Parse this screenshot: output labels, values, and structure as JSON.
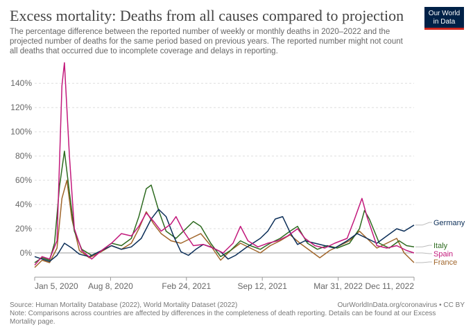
{
  "header": {
    "title": "Excess mortality: Deaths from all causes compared to projection",
    "subtitle": "The percentage difference between the reported number of weekly or monthly deaths in 2020–2022 and the projected number of deaths for the same period based on previous years. The reported number might not count all deaths that occurred due to incomplete coverage and delays in reporting.",
    "logo_line1": "Our World",
    "logo_line2": "in Data"
  },
  "footer": {
    "source": "Source: Human Mortality Database (2022), World Mortality Dataset (2022)",
    "license": "OurWorldInData.org/coronavirus • CC BY",
    "note": "Note: Comparisons across countries are affected by differences in the completeness of death reporting. Details can be found at our Excess Mortality page."
  },
  "colors": {
    "Germany": "#0b2e58",
    "Italy": "#2d6a1f",
    "Spain": "#c2187b",
    "France": "#a0652a",
    "grid": "#dddddd",
    "zero": "#999999"
  },
  "chart_data": {
    "type": "line",
    "title": "Excess mortality: Deaths from all causes compared to projection",
    "xlabel": "",
    "ylabel": "",
    "x_tick_labels": [
      "Jan 5, 2020",
      "Aug 8, 2020",
      "Feb 24, 2021",
      "Sep 12, 2021",
      "Mar 31, 2022",
      "Dec 11, 2022"
    ],
    "y_ticks": [
      0,
      20,
      40,
      60,
      80,
      100,
      120,
      140
    ],
    "y_tick_labels": [
      "0%",
      "20%",
      "40%",
      "60%",
      "80%",
      "100%",
      "120%",
      "140%"
    ],
    "ylim": [
      -20,
      155
    ],
    "xlim": [
      "2020-01-05",
      "2022-12-11"
    ],
    "grid": true,
    "legend": "right (labels at line ends)",
    "series": [
      {
        "name": "Germany",
        "points": [
          [
            "2020-01-05",
            -3
          ],
          [
            "2020-01-26",
            -5
          ],
          [
            "2020-02-16",
            -7
          ],
          [
            "2020-03-08",
            -2
          ],
          [
            "2020-03-29",
            8
          ],
          [
            "2020-04-19",
            4
          ],
          [
            "2020-05-10",
            -1
          ],
          [
            "2020-06-07",
            -3
          ],
          [
            "2020-07-05",
            1
          ],
          [
            "2020-08-09",
            6
          ],
          [
            "2020-09-06",
            3
          ],
          [
            "2020-10-04",
            5
          ],
          [
            "2020-11-01",
            12
          ],
          [
            "2020-11-29",
            28
          ],
          [
            "2020-12-20",
            36
          ],
          [
            "2021-01-10",
            30
          ],
          [
            "2021-01-31",
            14
          ],
          [
            "2021-02-21",
            1
          ],
          [
            "2021-03-14",
            -2
          ],
          [
            "2021-04-04",
            3
          ],
          [
            "2021-04-25",
            7
          ],
          [
            "2021-05-16",
            5
          ],
          [
            "2021-06-13",
            1
          ],
          [
            "2021-07-04",
            -5
          ],
          [
            "2021-07-25",
            -2
          ],
          [
            "2021-08-22",
            4
          ],
          [
            "2021-09-12",
            8
          ],
          [
            "2021-10-03",
            12
          ],
          [
            "2021-10-24",
            18
          ],
          [
            "2021-11-14",
            28
          ],
          [
            "2021-12-05",
            30
          ],
          [
            "2021-12-26",
            17
          ],
          [
            "2022-01-16",
            7
          ],
          [
            "2022-02-06",
            10
          ],
          [
            "2022-03-06",
            8
          ],
          [
            "2022-04-03",
            6
          ],
          [
            "2022-05-01",
            4
          ],
          [
            "2022-06-05",
            10
          ],
          [
            "2022-07-03",
            16
          ],
          [
            "2022-07-31",
            12
          ],
          [
            "2022-08-28",
            8
          ],
          [
            "2022-09-25",
            14
          ],
          [
            "2022-10-23",
            20
          ],
          [
            "2022-11-13",
            18
          ],
          [
            "2022-12-11",
            23
          ]
        ]
      },
      {
        "name": "Italy",
        "points": [
          [
            "2020-01-05",
            -8
          ],
          [
            "2020-01-26",
            -4
          ],
          [
            "2020-02-16",
            -6
          ],
          [
            "2020-03-01",
            8
          ],
          [
            "2020-03-15",
            55
          ],
          [
            "2020-03-29",
            84
          ],
          [
            "2020-04-12",
            50
          ],
          [
            "2020-04-26",
            18
          ],
          [
            "2020-05-17",
            3
          ],
          [
            "2020-06-14",
            -2
          ],
          [
            "2020-07-12",
            2
          ],
          [
            "2020-08-09",
            8
          ],
          [
            "2020-09-06",
            6
          ],
          [
            "2020-10-04",
            12
          ],
          [
            "2020-10-25",
            30
          ],
          [
            "2020-11-15",
            53
          ],
          [
            "2020-11-29",
            56
          ],
          [
            "2020-12-20",
            35
          ],
          [
            "2021-01-10",
            18
          ],
          [
            "2021-02-07",
            12
          ],
          [
            "2021-03-07",
            20
          ],
          [
            "2021-03-28",
            26
          ],
          [
            "2021-04-18",
            22
          ],
          [
            "2021-05-16",
            8
          ],
          [
            "2021-06-13",
            -3
          ],
          [
            "2021-07-11",
            2
          ],
          [
            "2021-08-08",
            10
          ],
          [
            "2021-09-05",
            6
          ],
          [
            "2021-10-03",
            3
          ],
          [
            "2021-10-31",
            8
          ],
          [
            "2021-11-28",
            12
          ],
          [
            "2021-12-26",
            18
          ],
          [
            "2022-01-16",
            22
          ],
          [
            "2022-02-13",
            8
          ],
          [
            "2022-03-13",
            3
          ],
          [
            "2022-04-10",
            6
          ],
          [
            "2022-05-08",
            4
          ],
          [
            "2022-06-12",
            8
          ],
          [
            "2022-07-10",
            20
          ],
          [
            "2022-07-24",
            35
          ],
          [
            "2022-08-07",
            28
          ],
          [
            "2022-09-04",
            8
          ],
          [
            "2022-10-02",
            4
          ],
          [
            "2022-10-30",
            10
          ],
          [
            "2022-11-20",
            6
          ],
          [
            "2022-12-11",
            5
          ]
        ]
      },
      {
        "name": "Spain",
        "points": [
          [
            "2020-01-05",
            -10
          ],
          [
            "2020-01-26",
            -3
          ],
          [
            "2020-02-16",
            -5
          ],
          [
            "2020-03-08",
            10
          ],
          [
            "2020-03-22",
            138
          ],
          [
            "2020-03-29",
            157
          ],
          [
            "2020-04-12",
            80
          ],
          [
            "2020-04-26",
            20
          ],
          [
            "2020-05-17",
            2
          ],
          [
            "2020-06-14",
            -5
          ],
          [
            "2020-07-12",
            2
          ],
          [
            "2020-08-09",
            8
          ],
          [
            "2020-09-06",
            16
          ],
          [
            "2020-10-04",
            14
          ],
          [
            "2020-10-25",
            22
          ],
          [
            "2020-11-15",
            33
          ],
          [
            "2020-12-06",
            26
          ],
          [
            "2020-12-27",
            18
          ],
          [
            "2021-01-24",
            24
          ],
          [
            "2021-02-07",
            30
          ],
          [
            "2021-02-28",
            18
          ],
          [
            "2021-03-28",
            6
          ],
          [
            "2021-04-25",
            7
          ],
          [
            "2021-05-23",
            4
          ],
          [
            "2021-06-20",
            0
          ],
          [
            "2021-07-18",
            8
          ],
          [
            "2021-08-08",
            22
          ],
          [
            "2021-08-29",
            10
          ],
          [
            "2021-09-26",
            5
          ],
          [
            "2021-10-24",
            8
          ],
          [
            "2021-11-21",
            10
          ],
          [
            "2021-12-19",
            14
          ],
          [
            "2022-01-16",
            20
          ],
          [
            "2022-02-06",
            12
          ],
          [
            "2022-03-06",
            6
          ],
          [
            "2022-04-03",
            4
          ],
          [
            "2022-05-01",
            8
          ],
          [
            "2022-06-05",
            12
          ],
          [
            "2022-06-26",
            28
          ],
          [
            "2022-07-17",
            45
          ],
          [
            "2022-07-31",
            30
          ],
          [
            "2022-08-28",
            6
          ],
          [
            "2022-09-25",
            4
          ],
          [
            "2022-10-23",
            6
          ],
          [
            "2022-11-20",
            2
          ],
          [
            "2022-12-11",
            0
          ]
        ]
      },
      {
        "name": "France",
        "points": [
          [
            "2020-01-05",
            -12
          ],
          [
            "2020-01-26",
            -6
          ],
          [
            "2020-02-16",
            -8
          ],
          [
            "2020-03-08",
            4
          ],
          [
            "2020-03-22",
            45
          ],
          [
            "2020-04-05",
            60
          ],
          [
            "2020-04-19",
            28
          ],
          [
            "2020-05-10",
            2
          ],
          [
            "2020-06-07",
            -4
          ],
          [
            "2020-07-05",
            0
          ],
          [
            "2020-08-09",
            6
          ],
          [
            "2020-09-06",
            3
          ],
          [
            "2020-10-04",
            8
          ],
          [
            "2020-10-25",
            20
          ],
          [
            "2020-11-15",
            34
          ],
          [
            "2020-12-06",
            24
          ],
          [
            "2020-12-27",
            16
          ],
          [
            "2021-01-24",
            10
          ],
          [
            "2021-02-21",
            8
          ],
          [
            "2021-03-21",
            12
          ],
          [
            "2021-04-18",
            16
          ],
          [
            "2021-05-16",
            6
          ],
          [
            "2021-06-13",
            -6
          ],
          [
            "2021-07-11",
            2
          ],
          [
            "2021-08-08",
            8
          ],
          [
            "2021-09-05",
            4
          ],
          [
            "2021-10-03",
            0
          ],
          [
            "2021-10-31",
            6
          ],
          [
            "2021-11-28",
            10
          ],
          [
            "2021-12-26",
            15
          ],
          [
            "2022-01-23",
            8
          ],
          [
            "2022-02-20",
            2
          ],
          [
            "2022-03-20",
            -4
          ],
          [
            "2022-04-17",
            2
          ],
          [
            "2022-05-15",
            6
          ],
          [
            "2022-06-12",
            10
          ],
          [
            "2022-07-10",
            18
          ],
          [
            "2022-07-31",
            12
          ],
          [
            "2022-08-28",
            4
          ],
          [
            "2022-09-25",
            8
          ],
          [
            "2022-10-23",
            12
          ],
          [
            "2022-11-13",
            0
          ],
          [
            "2022-12-04",
            -6
          ],
          [
            "2022-12-11",
            -8
          ]
        ]
      }
    ]
  }
}
